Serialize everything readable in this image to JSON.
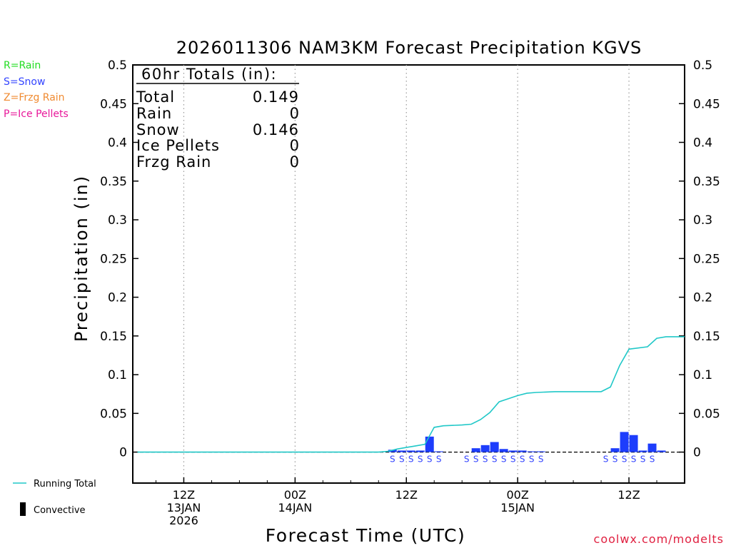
{
  "chart_data": {
    "type": "bar",
    "title": "2026011306 NAM3KM Forecast Precipitation KGVS",
    "xlabel": "Forecast Time (UTC)",
    "ylabel": "Precipitation (in)",
    "ylim": [
      -0.04,
      0.5
    ],
    "xlim_hours": [
      6.5,
      66
    ],
    "yticks": [
      "0",
      "0.05",
      "0.1",
      "0.15",
      "0.2",
      "0.25",
      "0.3",
      "0.35",
      "0.4",
      "0.45",
      "0.5"
    ],
    "x_ticks": [
      {
        "hour": 12,
        "line1": "12Z",
        "line2": "13JAN",
        "line3": "2026"
      },
      {
        "hour": 24,
        "line1": "00Z",
        "line2": "14JAN",
        "line3": ""
      },
      {
        "hour": 36,
        "line1": "12Z",
        "line2": "",
        "line3": ""
      },
      {
        "hour": 48,
        "line1": "00Z",
        "line2": "15JAN",
        "line3": ""
      },
      {
        "hour": 60,
        "line1": "12Z",
        "line2": "",
        "line3": ""
      }
    ],
    "hourly_precip": {
      "hours": [
        35,
        36,
        37,
        38,
        39,
        40,
        44,
        45,
        46,
        47,
        48,
        49,
        50,
        51,
        59,
        60,
        61,
        62,
        63,
        64
      ],
      "values": [
        0.003,
        0.002,
        0.002,
        0.002,
        0.02,
        0.001,
        0.005,
        0.009,
        0.013,
        0.004,
        0.002,
        0.002,
        0.001,
        0.001,
        0.005,
        0.026,
        0.022,
        0.002,
        0.011,
        0.002
      ]
    },
    "running_total": {
      "hours": [
        7,
        33,
        34,
        35,
        36,
        37,
        38,
        39,
        40,
        42,
        43,
        44,
        45,
        46,
        47,
        48,
        49,
        50,
        52,
        55,
        57,
        58,
        59,
        60,
        62,
        63,
        64,
        66
      ],
      "values": [
        0,
        0,
        0.001,
        0.004,
        0.006,
        0.008,
        0.01,
        0.032,
        0.034,
        0.035,
        0.036,
        0.042,
        0.051,
        0.065,
        0.069,
        0.073,
        0.076,
        0.077,
        0.078,
        0.078,
        0.078,
        0.084,
        0.112,
        0.133,
        0.136,
        0.147,
        0.149,
        0.149
      ]
    },
    "precip_type_hours": [
      35,
      36,
      37,
      38,
      39,
      40,
      43,
      44,
      45,
      46,
      47,
      48,
      49,
      50,
      51,
      58,
      59,
      60,
      61,
      62,
      63
    ],
    "precip_type_letter": "S",
    "totals_box": {
      "heading": "60hr Totals (in):",
      "rows": [
        {
          "label": "Total",
          "value": "0.149"
        },
        {
          "label": "Rain",
          "value": "0"
        },
        {
          "label": "Snow",
          "value": "0.146"
        },
        {
          "label": "Ice Pellets",
          "value": "0"
        },
        {
          "label": "Frzg Rain",
          "value": "0"
        }
      ]
    },
    "type_legend": [
      {
        "text": "R=Rain",
        "color": "#22dd22"
      },
      {
        "text": "S=Snow",
        "color": "#3344ff"
      },
      {
        "text": "Z=Frzg Rain",
        "color": "#f08a30"
      },
      {
        "text": "P=Ice Pellets",
        "color": "#e8189a"
      }
    ],
    "series_legend": {
      "running_total": "Running Total",
      "convective": "Convective"
    },
    "credit": "coolwx.com/modelts",
    "colors": {
      "bar": "#1d3dfc",
      "running_total": "#20c8c8",
      "snow_letter": "#3344ff",
      "credit": "#e02040",
      "axis": "#000000",
      "grid": "#9a9a9a"
    }
  }
}
